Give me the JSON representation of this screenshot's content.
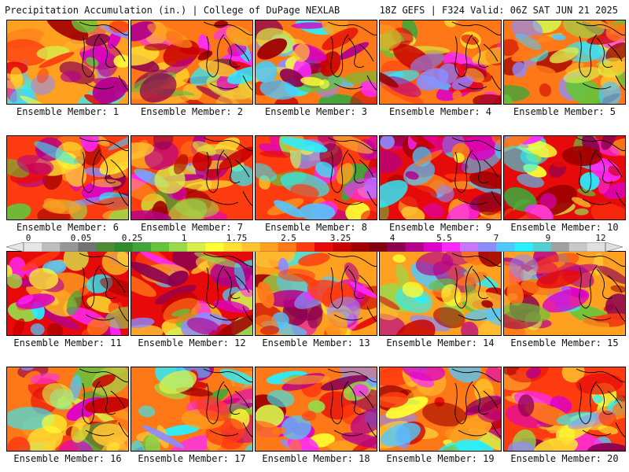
{
  "header": {
    "left": "Precipitation Accumulation (in.) | College of DuPage NEXLAB",
    "right": "18Z GEFS | F324 Valid: 06Z SAT JUN 21 2025"
  },
  "legend": {
    "tick_labels": [
      "0",
      "0.05",
      "0.25",
      "1",
      "1.75",
      "2.5",
      "3.25",
      "4",
      "5.5",
      "7",
      "9",
      "12"
    ],
    "colors": [
      "#e6e6e6",
      "#bdbdbd",
      "#969696",
      "#737373",
      "#4d8c33",
      "#2e8b2e",
      "#3fa63a",
      "#66c33a",
      "#99d94a",
      "#d8ef4a",
      "#ffff33",
      "#ffe033",
      "#ffc233",
      "#ffa020",
      "#ff7818",
      "#ff3c10",
      "#e60a0a",
      "#c80000",
      "#a00000",
      "#800010",
      "#8c0050",
      "#b4008c",
      "#dc00c8",
      "#ff28ff",
      "#c878ff",
      "#8c8cff",
      "#50c8ff",
      "#28f0ff",
      "#50d0d0",
      "#a0a0a0",
      "#c8c8c8",
      "#e0e0e0"
    ]
  },
  "panel_label_prefix": "Ensemble Member: ",
  "members": [
    {
      "label": "Ensemble Member: 1"
    },
    {
      "label": "Ensemble Member: 2"
    },
    {
      "label": "Ensemble Member: 3"
    },
    {
      "label": "Ensemble Member: 4"
    },
    {
      "label": "Ensemble Member: 5"
    },
    {
      "label": "Ensemble Member: 6"
    },
    {
      "label": "Ensemble Member: 7"
    },
    {
      "label": "Ensemble Member: 8"
    },
    {
      "label": "Ensemble Member: 9"
    },
    {
      "label": "Ensemble Member: 10"
    },
    {
      "label": "Ensemble Member: 11"
    },
    {
      "label": "Ensemble Member: 12"
    },
    {
      "label": "Ensemble Member: 13"
    },
    {
      "label": "Ensemble Member: 14"
    },
    {
      "label": "Ensemble Member: 15"
    },
    {
      "label": "Ensemble Member: 16"
    },
    {
      "label": "Ensemble Member: 17"
    },
    {
      "label": "Ensemble Member: 18"
    },
    {
      "label": "Ensemble Member: 19"
    },
    {
      "label": "Ensemble Member: 20"
    }
  ]
}
